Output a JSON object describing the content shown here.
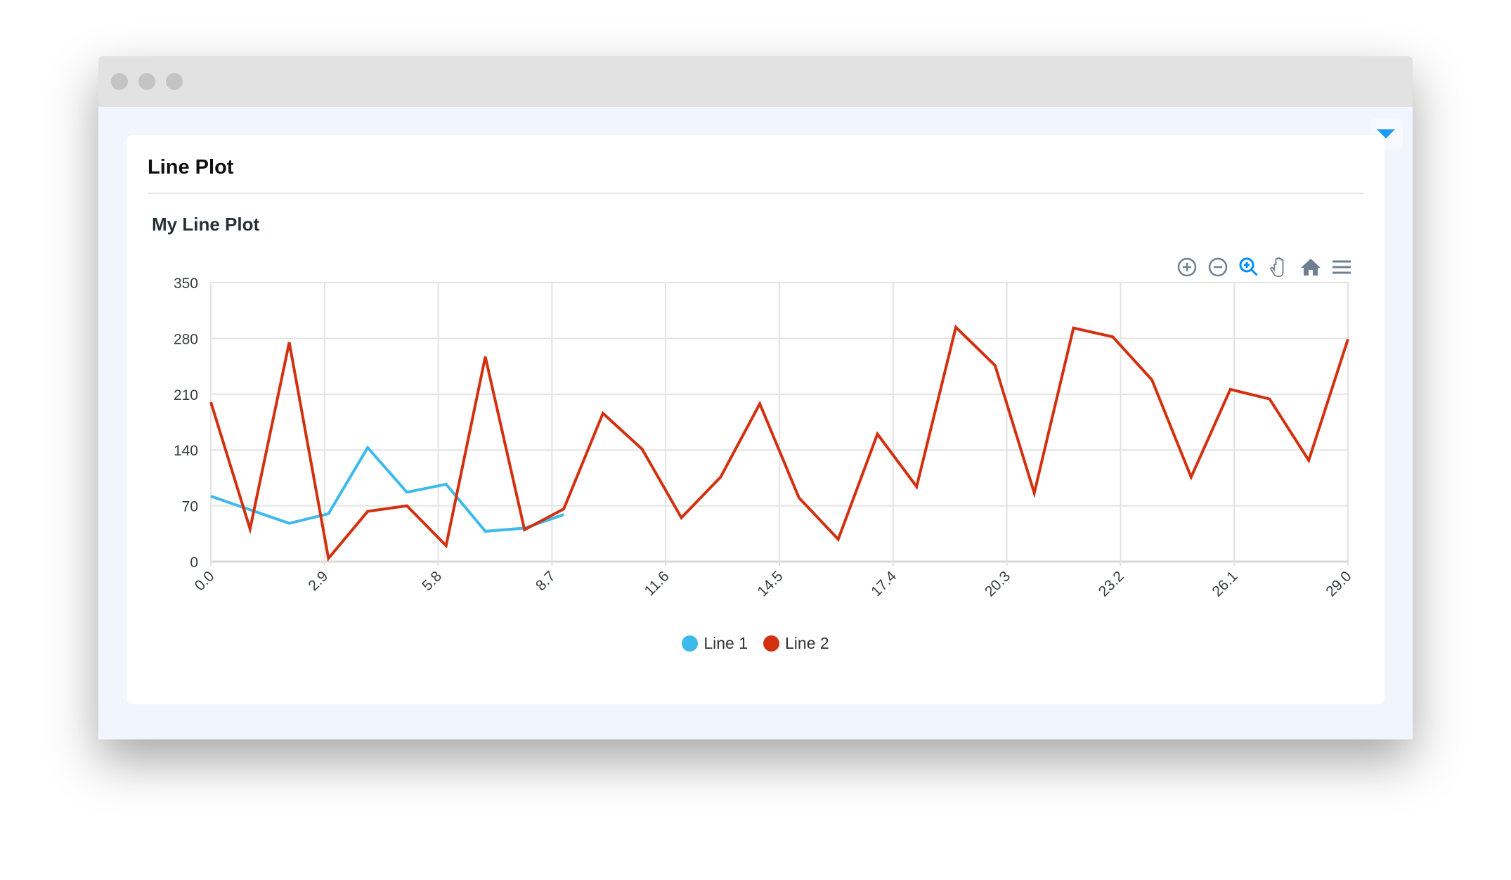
{
  "card": {
    "title": "Line Plot"
  },
  "toolbar": {
    "icons": [
      "zoom-in-icon",
      "zoom-out-icon",
      "selection-zoom-icon",
      "pan-hand-icon",
      "home-reset-icon",
      "menu-icon"
    ],
    "active": "selection-zoom-icon"
  },
  "colors": {
    "line1": "#3dbaec",
    "line2": "#d3300f",
    "accent": "#1e9bf0"
  },
  "chart_data": {
    "type": "line",
    "title": "My Line Plot",
    "xlabel": "",
    "ylabel": "",
    "xlim": [
      0,
      29
    ],
    "ylim": [
      0,
      350
    ],
    "xticks": [
      "0.0",
      "2.9",
      "5.8",
      "8.7",
      "11.6",
      "14.5",
      "17.4",
      "20.3",
      "23.2",
      "26.1",
      "29.0"
    ],
    "yticks": [
      "0",
      "70",
      "140",
      "210",
      "280",
      "350"
    ],
    "grid": true,
    "legend": "bottom",
    "series": [
      {
        "name": "Line 1",
        "x": [
          0,
          1,
          2,
          3,
          4,
          5,
          6,
          7,
          8,
          9
        ],
        "y": [
          82,
          65,
          48,
          60,
          143,
          87,
          97,
          38,
          42,
          59
        ]
      },
      {
        "name": "Line 2",
        "x": [
          0,
          1,
          2,
          3,
          4,
          5,
          6,
          7,
          8,
          9,
          10,
          11,
          12,
          13,
          14,
          15,
          16,
          17,
          18,
          19,
          20,
          21,
          22,
          23,
          24,
          25,
          26,
          27,
          28,
          29
        ],
        "y": [
          200,
          41,
          275,
          4,
          63,
          70,
          20,
          257,
          40,
          66,
          186,
          141,
          55,
          106,
          198,
          80,
          28,
          160,
          94,
          294,
          246,
          86,
          293,
          282,
          228,
          106,
          216,
          204,
          127,
          279
        ]
      }
    ]
  }
}
